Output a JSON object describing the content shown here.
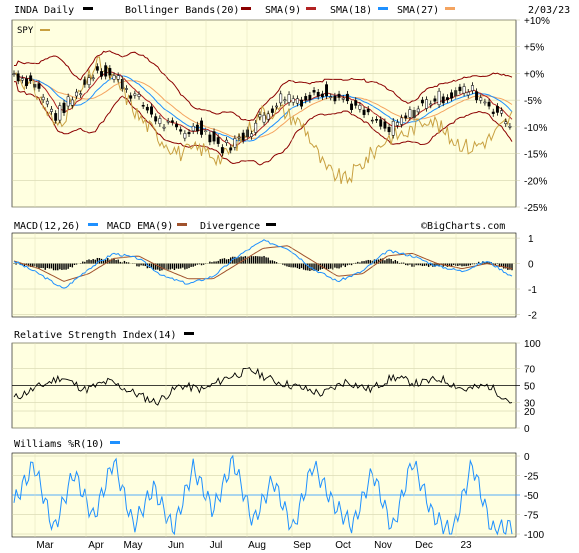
{
  "header": {
    "symbol_label": "INDA Daily",
    "bollinger_label": "Bollinger Bands(20)",
    "sma9_label": "SMA(9)",
    "sma18_label": "SMA(18)",
    "sma27_label": "SMA(27)",
    "date": "2/03/23",
    "spy_label": "SPY"
  },
  "colors": {
    "panel_bg": "#ffffe0",
    "price_black": "#000000",
    "bollinger": "#8b0000",
    "sma9": "#b22222",
    "sma18": "#1e90ff",
    "sma27": "#f4a460",
    "spy": "#c8a040",
    "macd": "#1e90ff",
    "macd_ema": "#a0522d",
    "divergence": "#000000",
    "rsi": "#000000",
    "williams": "#1e90ff"
  },
  "watermark": "©BigCharts.com",
  "chart_data": [
    {
      "type": "line",
      "panel": "price",
      "y_tick_labels": [
        "+10%",
        "+5%",
        "+0%",
        "-5%",
        "-10%",
        "-15%",
        "-20%",
        "-25%"
      ],
      "ylim": [
        -25,
        10
      ],
      "x_tick_labels": [
        "Mar",
        "Apr",
        "May",
        "Jun",
        "Jul",
        "Aug",
        "Sep",
        "Oct",
        "Nov",
        "Dec",
        "23"
      ],
      "x": [
        0,
        10,
        20,
        30,
        40,
        50,
        60,
        70,
        80,
        90,
        100,
        110,
        120,
        130,
        140,
        150,
        160,
        170,
        180,
        190,
        200,
        210,
        220,
        230,
        240
      ],
      "series": [
        {
          "name": "INDA Daily",
          "values": [
            0,
            -2,
            -8,
            -4,
            1,
            -1,
            -5,
            -9,
            -11,
            -10,
            -14,
            -12,
            -8,
            -4,
            -5,
            -3,
            -5,
            -8,
            -11,
            -8,
            -5,
            -4,
            -3,
            -6,
            -10
          ]
        },
        {
          "name": "SPY",
          "values": [
            0,
            -3,
            -10,
            -5,
            2,
            -2,
            -8,
            -12,
            -15,
            -14,
            -16,
            -12,
            -7,
            -7,
            -10,
            -18,
            -20,
            -16,
            -12,
            -11,
            -8,
            -12,
            -14,
            -12,
            -8
          ]
        }
      ]
    },
    {
      "type": "line",
      "panel": "macd",
      "title": "MACD(12,26)",
      "legend": [
        "MACD(12,26)",
        "MACD EMA(9)",
        "Divergence"
      ],
      "y_tick_labels": [
        "1",
        "0",
        "-1",
        "-2"
      ],
      "ylim": [
        -2,
        1
      ],
      "series": [
        {
          "name": "MACD(12,26)",
          "values": [
            0.1,
            -0.4,
            -1.0,
            -0.2,
            0.4,
            0.2,
            -0.5,
            -0.8,
            -0.5,
            0.3,
            0.9,
            0.6,
            -0.2,
            -0.7,
            -0.3,
            0.5,
            0.3,
            -0.1,
            -0.3,
            0.1,
            -0.5
          ]
        },
        {
          "name": "MACD EMA(9)",
          "values": [
            0.1,
            -0.2,
            -0.7,
            -0.4,
            0.2,
            0.3,
            -0.2,
            -0.6,
            -0.6,
            0.0,
            0.6,
            0.7,
            0.1,
            -0.5,
            -0.4,
            0.3,
            0.4,
            0.0,
            -0.2,
            0.0,
            -0.2
          ]
        }
      ]
    },
    {
      "type": "line",
      "panel": "rsi",
      "title": "Relative Strength Index(14)",
      "y_tick_labels": [
        "100",
        "70",
        "50",
        "30",
        "20",
        "0"
      ],
      "ylim": [
        0,
        100
      ],
      "series": [
        {
          "name": "Relative Strength Index(14)",
          "values": [
            35,
            48,
            60,
            45,
            55,
            42,
            30,
            50,
            45,
            60,
            68,
            55,
            48,
            40,
            55,
            45,
            60,
            52,
            58,
            45,
            50,
            30
          ]
        }
      ]
    },
    {
      "type": "line",
      "panel": "williams",
      "title": "Williams %R(10)",
      "y_tick_labels": [
        "0",
        "-25",
        "-50",
        "-75",
        "-100"
      ],
      "ylim": [
        -100,
        0
      ],
      "series": [
        {
          "name": "Williams %R(10)",
          "values": [
            -60,
            -10,
            -95,
            -20,
            -80,
            -5,
            -90,
            -40,
            -95,
            -15,
            -70,
            -5,
            -85,
            -30,
            -95,
            -10,
            -60,
            -90,
            -20,
            -95,
            -5,
            -75,
            -100,
            -10,
            -95,
            -90
          ]
        }
      ]
    }
  ]
}
